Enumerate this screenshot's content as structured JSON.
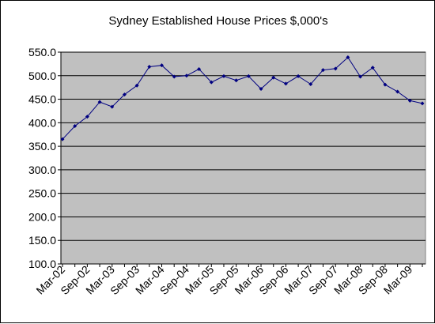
{
  "chart_data": {
    "type": "line",
    "title": "Sydney Established House Prices $,000's",
    "xlabel": "",
    "ylabel": "",
    "ylim": [
      100,
      550
    ],
    "ytick_step": 50,
    "ytick_labels": [
      "100.0",
      "150.0",
      "200.0",
      "250.0",
      "300.0",
      "350.0",
      "400.0",
      "450.0",
      "500.0",
      "550.0"
    ],
    "x": [
      "Mar-02",
      "Jun-02",
      "Sep-02",
      "Dec-02",
      "Mar-03",
      "Jun-03",
      "Sep-03",
      "Dec-03",
      "Mar-04",
      "Jun-04",
      "Sep-04",
      "Dec-04",
      "Mar-05",
      "Jun-05",
      "Sep-05",
      "Dec-05",
      "Mar-06",
      "Jun-06",
      "Sep-06",
      "Dec-06",
      "Mar-07",
      "Jun-07",
      "Sep-07",
      "Dec-07",
      "Mar-08",
      "Jun-08",
      "Sep-08",
      "Dec-08",
      "Mar-09",
      "Jun-09"
    ],
    "x_tick_labels": [
      "Mar-02",
      "Sep-02",
      "Mar-03",
      "Sep-03",
      "Mar-04",
      "Sep-04",
      "Mar-05",
      "Sep-05",
      "Mar-06",
      "Sep-06",
      "Mar-07",
      "Sep-07",
      "Mar-08",
      "Sep-08",
      "Mar-09"
    ],
    "series": [
      {
        "values": [
          365,
          393,
          413,
          444,
          434,
          460,
          479,
          519,
          522,
          498,
          500,
          514,
          486,
          499,
          490,
          499,
          472,
          496,
          483,
          499,
          482,
          512,
          515,
          539,
          498,
          517,
          481,
          466,
          447,
          441
        ]
      }
    ],
    "grid": true,
    "plot_background": "#c0c0c0",
    "line_color": "#000080",
    "legend": "none"
  }
}
